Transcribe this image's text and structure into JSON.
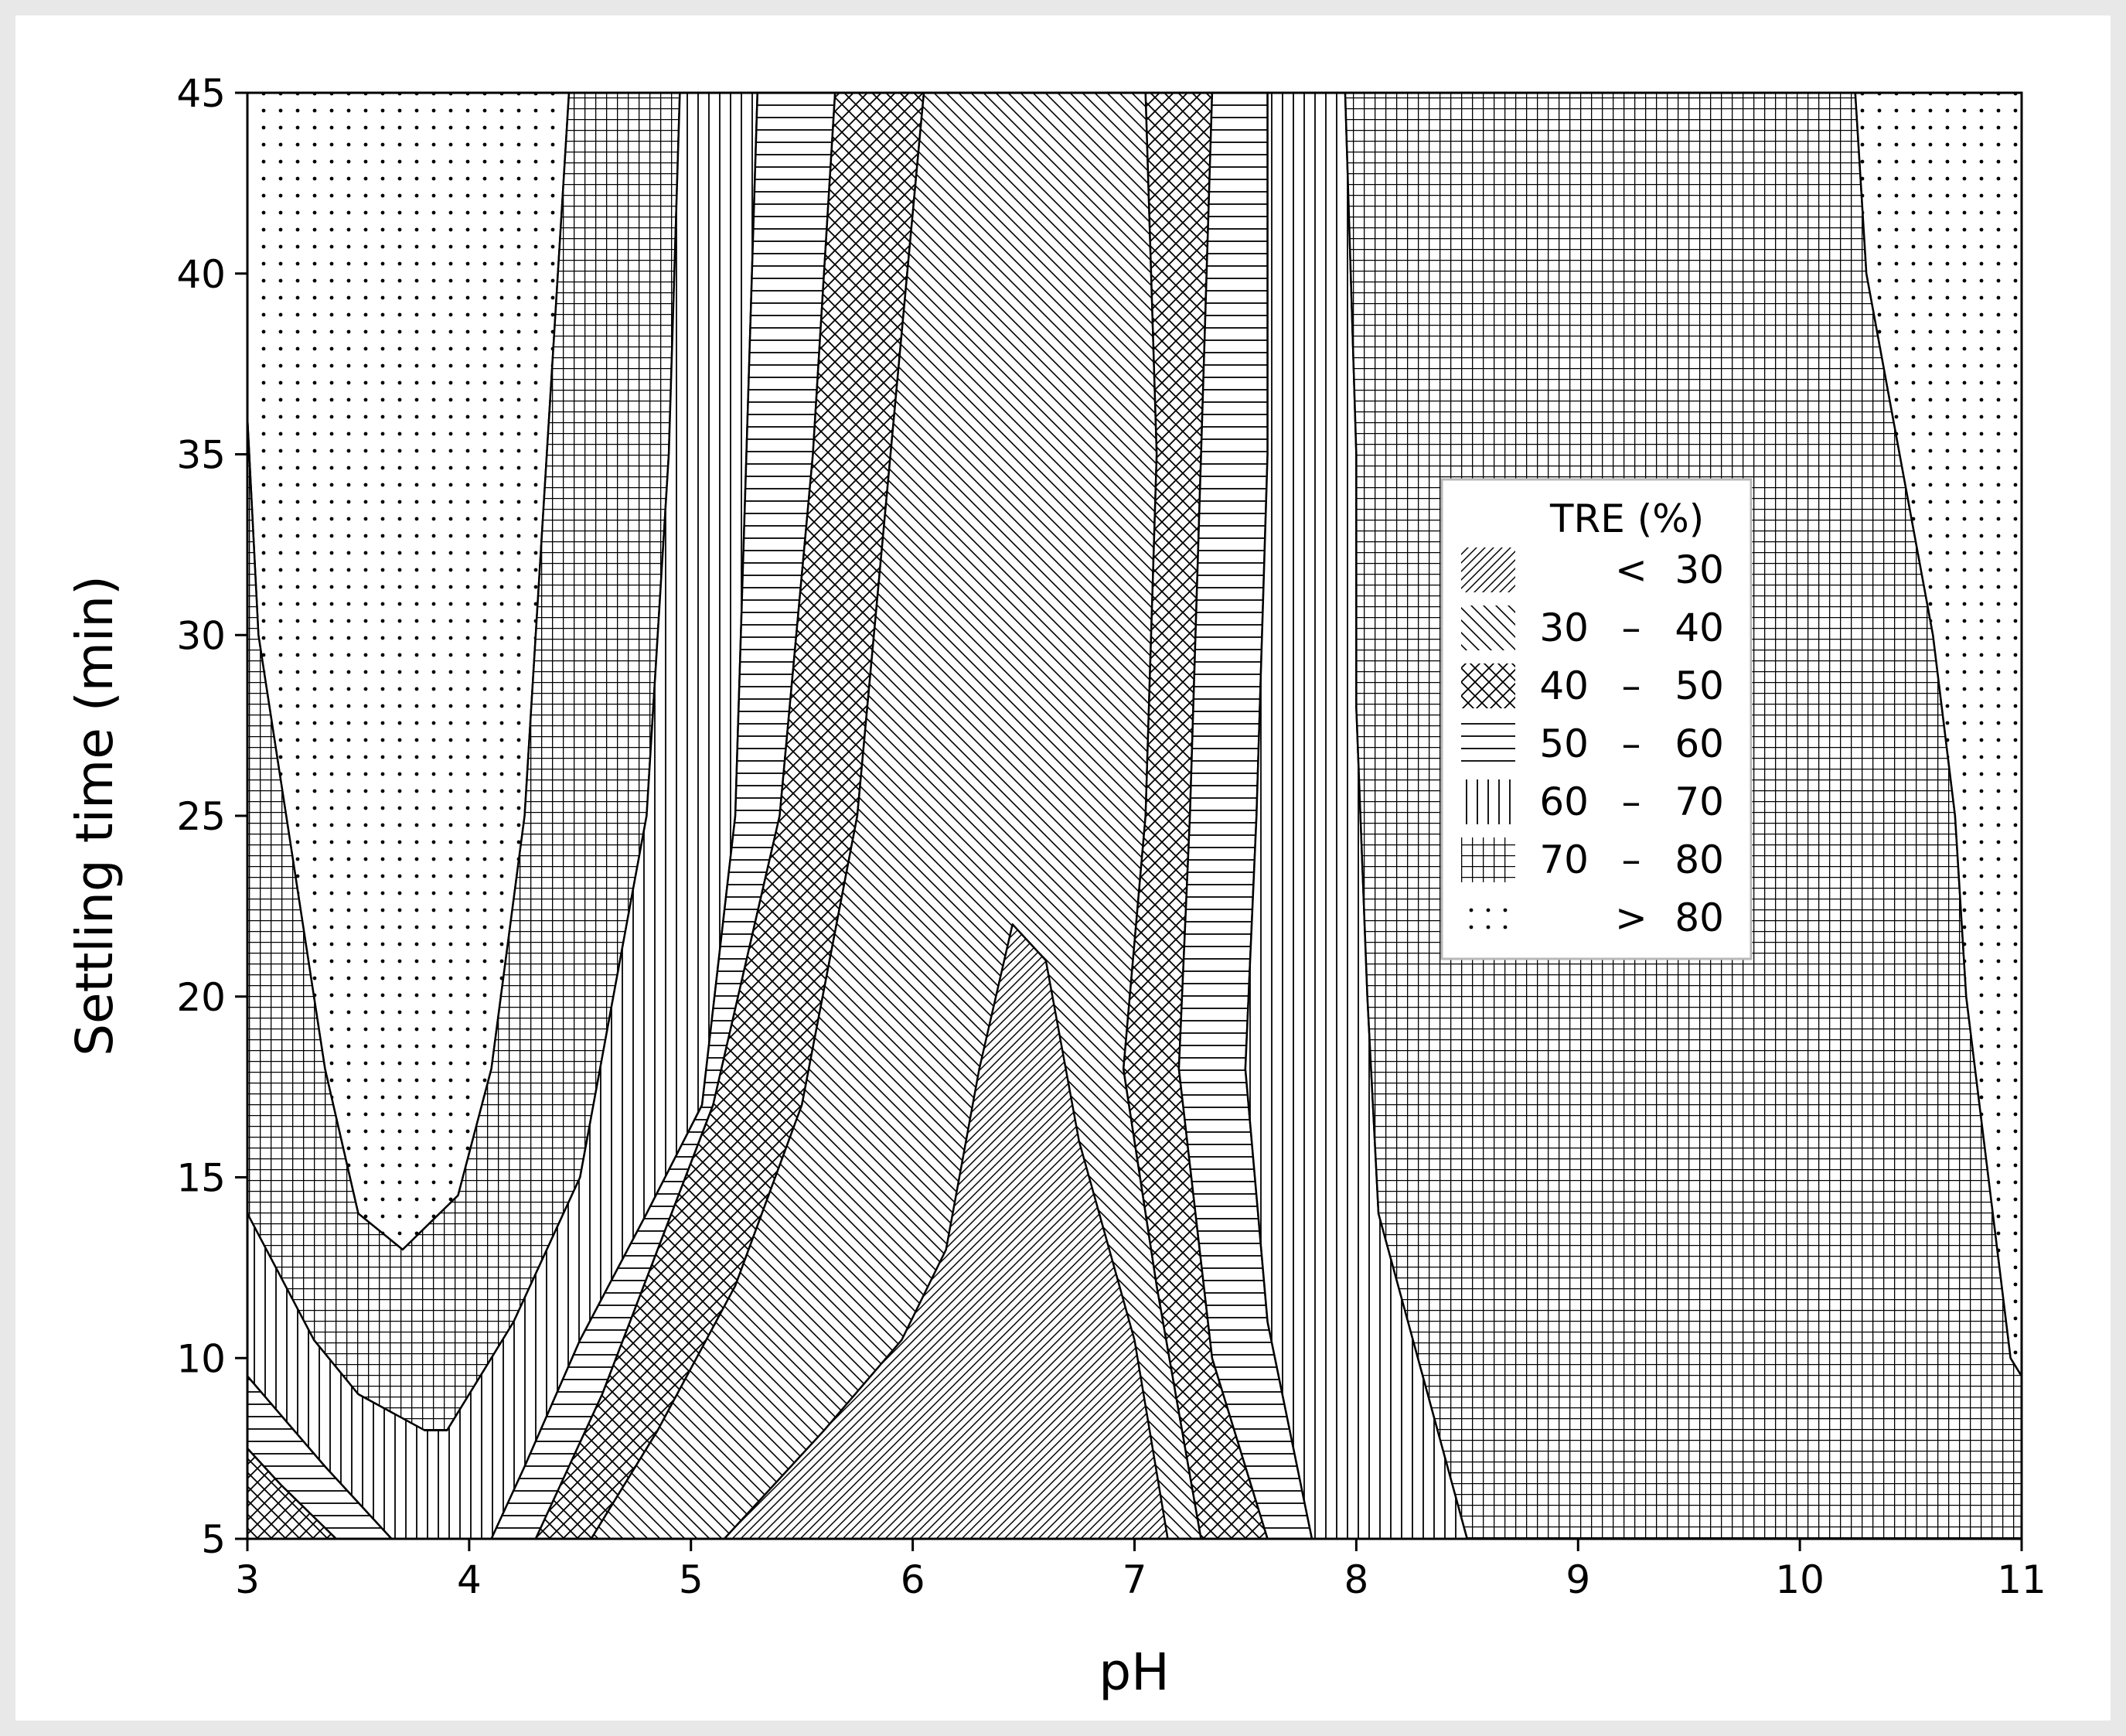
{
  "chart_data": {
    "type": "contour",
    "xlabel": "pH",
    "ylabel": "Settling time (min)",
    "xlim": [
      3,
      11
    ],
    "ylim": [
      5,
      45
    ],
    "x_ticks": [
      "3",
      "4",
      "5",
      "6",
      "7",
      "8",
      "9",
      "10",
      "11"
    ],
    "y_ticks": [
      "5",
      "10",
      "15",
      "20",
      "25",
      "30",
      "35",
      "40",
      "45"
    ],
    "legend": {
      "title": "TRE (%)",
      "placement": "right",
      "entries": [
        {
          "op": "<",
          "low": "",
          "high": "30",
          "pattern": "diag-right-dense"
        },
        {
          "op": "–",
          "low": "30",
          "high": "40",
          "pattern": "diag-left"
        },
        {
          "op": "–",
          "low": "40",
          "high": "50",
          "pattern": "crosshatch-diag"
        },
        {
          "op": "–",
          "low": "50",
          "high": "60",
          "pattern": "horizontal"
        },
        {
          "op": "–",
          "low": "60",
          "high": "70",
          "pattern": "vertical"
        },
        {
          "op": "–",
          "low": "70",
          "high": "80",
          "pattern": "grid"
        },
        {
          "op": ">",
          "low": "",
          "high": "80",
          "pattern": "dots"
        }
      ]
    },
    "regions": [
      {
        "band": ">80",
        "pattern": "dots",
        "points": [
          [
            3,
            45
          ],
          [
            4.45,
            45
          ],
          [
            4.35,
            35
          ],
          [
            4.25,
            25
          ],
          [
            4.1,
            18
          ],
          [
            3.95,
            14.5
          ],
          [
            3.7,
            13
          ],
          [
            3.5,
            14
          ],
          [
            3.35,
            18
          ],
          [
            3.2,
            24
          ],
          [
            3.05,
            30
          ],
          [
            3,
            36
          ]
        ]
      },
      {
        "band": "70-80",
        "pattern": "grid",
        "points": [
          [
            4.45,
            45
          ],
          [
            4.95,
            45
          ],
          [
            4.9,
            35
          ],
          [
            4.8,
            25
          ],
          [
            4.5,
            15
          ],
          [
            4.2,
            11
          ],
          [
            4.0,
            9
          ],
          [
            3.9,
            8
          ],
          [
            3.8,
            8
          ],
          [
            3.5,
            9
          ],
          [
            3.3,
            10.5
          ],
          [
            3.0,
            14
          ],
          [
            3,
            36
          ],
          [
            3.05,
            30
          ],
          [
            3.2,
            24
          ],
          [
            3.35,
            18
          ],
          [
            3.5,
            14
          ],
          [
            3.7,
            13
          ],
          [
            3.95,
            14.5
          ],
          [
            4.1,
            18
          ],
          [
            4.25,
            25
          ],
          [
            4.35,
            35
          ]
        ]
      },
      {
        "band": "60-70",
        "pattern": "vertical",
        "points": [
          [
            4.95,
            45
          ],
          [
            5.3,
            45
          ],
          [
            5.25,
            35
          ],
          [
            5.2,
            25
          ],
          [
            5.05,
            17
          ],
          [
            4.8,
            14
          ],
          [
            4.5,
            10.5
          ],
          [
            4.25,
            7
          ],
          [
            4.1,
            5
          ],
          [
            3.65,
            5
          ],
          [
            3.35,
            7
          ],
          [
            3.0,
            9.5
          ],
          [
            3.0,
            14
          ],
          [
            3.3,
            10.5
          ],
          [
            3.5,
            9
          ],
          [
            3.8,
            8
          ],
          [
            3.9,
            8
          ],
          [
            4.0,
            9
          ],
          [
            4.2,
            11
          ],
          [
            4.5,
            15
          ],
          [
            4.8,
            25
          ],
          [
            4.9,
            35
          ]
        ]
      },
      {
        "band": "50-60",
        "pattern": "horizontal",
        "points": [
          [
            5.3,
            45
          ],
          [
            5.65,
            45
          ],
          [
            5.55,
            35
          ],
          [
            5.4,
            25
          ],
          [
            5.1,
            17
          ],
          [
            4.85,
            13
          ],
          [
            4.6,
            9
          ],
          [
            4.3,
            5
          ],
          [
            4.1,
            5
          ],
          [
            4.25,
            7
          ],
          [
            4.5,
            10.5
          ],
          [
            4.8,
            14
          ],
          [
            5.05,
            17
          ],
          [
            5.2,
            25
          ],
          [
            5.25,
            35
          ]
        ]
      },
      {
        "band": "50-60",
        "pattern": "horizontal",
        "points": [
          [
            3.0,
            9.5
          ],
          [
            3.35,
            7
          ],
          [
            3.65,
            5
          ],
          [
            3.4,
            5
          ],
          [
            3.15,
            6.5
          ],
          [
            3.0,
            7.5
          ]
        ]
      },
      {
        "band": "40-50",
        "pattern": "crosshatch-diag",
        "points": [
          [
            3.0,
            7.5
          ],
          [
            3.15,
            6.5
          ],
          [
            3.4,
            5
          ],
          [
            3.0,
            5
          ]
        ]
      },
      {
        "band": "40-50",
        "pattern": "crosshatch-diag",
        "points": [
          [
            5.65,
            45
          ],
          [
            6.05,
            45
          ],
          [
            5.9,
            35
          ],
          [
            5.75,
            25
          ],
          [
            5.5,
            17
          ],
          [
            5.2,
            12
          ],
          [
            4.85,
            8
          ],
          [
            4.55,
            5
          ],
          [
            4.3,
            5
          ],
          [
            4.6,
            9
          ],
          [
            4.85,
            13
          ],
          [
            5.1,
            17
          ],
          [
            5.4,
            25
          ],
          [
            5.55,
            35
          ]
        ]
      },
      {
        "band": "30-40",
        "pattern": "diag-left",
        "points": [
          [
            6.05,
            45
          ],
          [
            7.05,
            45
          ],
          [
            7.1,
            35
          ],
          [
            7.05,
            25
          ],
          [
            6.95,
            18
          ],
          [
            7.1,
            12
          ],
          [
            7.3,
            5
          ],
          [
            4.55,
            5
          ],
          [
            4.85,
            8
          ],
          [
            5.2,
            12
          ],
          [
            5.5,
            17
          ],
          [
            5.75,
            25
          ],
          [
            5.9,
            35
          ]
        ]
      },
      {
        "band": "<30",
        "pattern": "diag-right-dense",
        "points": [
          [
            6.45,
            22
          ],
          [
            6.6,
            21
          ],
          [
            6.75,
            16
          ],
          [
            7.0,
            10.5
          ],
          [
            7.15,
            5
          ],
          [
            5.15,
            5
          ],
          [
            5.6,
            8
          ],
          [
            5.95,
            10.5
          ],
          [
            6.15,
            13
          ],
          [
            6.3,
            18
          ]
        ]
      },
      {
        "band": "40-50",
        "pattern": "crosshatch-diag",
        "points": [
          [
            7.05,
            45
          ],
          [
            7.35,
            45
          ],
          [
            7.3,
            35
          ],
          [
            7.25,
            25
          ],
          [
            7.2,
            18
          ],
          [
            7.35,
            10
          ],
          [
            7.6,
            5
          ],
          [
            7.3,
            5
          ],
          [
            7.1,
            12
          ],
          [
            6.95,
            18
          ],
          [
            7.05,
            25
          ],
          [
            7.1,
            35
          ]
        ]
      },
      {
        "band": "50-60",
        "pattern": "horizontal",
        "points": [
          [
            7.35,
            45
          ],
          [
            7.6,
            45
          ],
          [
            7.6,
            35
          ],
          [
            7.55,
            25
          ],
          [
            7.5,
            18
          ],
          [
            7.6,
            11
          ],
          [
            7.8,
            5
          ],
          [
            7.6,
            5
          ],
          [
            7.35,
            10
          ],
          [
            7.2,
            18
          ],
          [
            7.25,
            25
          ],
          [
            7.3,
            35
          ]
        ]
      },
      {
        "band": "60-70",
        "pattern": "vertical",
        "points": [
          [
            7.6,
            45
          ],
          [
            7.95,
            45
          ],
          [
            8.0,
            35
          ],
          [
            8.0,
            28
          ],
          [
            8.05,
            20
          ],
          [
            8.1,
            14
          ],
          [
            8.5,
            5
          ],
          [
            7.8,
            5
          ],
          [
            7.6,
            11
          ],
          [
            7.5,
            18
          ],
          [
            7.55,
            25
          ],
          [
            7.6,
            35
          ]
        ]
      },
      {
        "band": "70-80",
        "pattern": "grid",
        "points": [
          [
            7.95,
            45
          ],
          [
            10.25,
            45
          ],
          [
            10.3,
            40
          ],
          [
            10.45,
            35
          ],
          [
            10.6,
            30
          ],
          [
            10.7,
            25
          ],
          [
            10.75,
            20
          ],
          [
            10.85,
            15
          ],
          [
            10.95,
            10
          ],
          [
            11.0,
            9.5
          ],
          [
            11.0,
            5
          ],
          [
            8.5,
            5
          ],
          [
            8.1,
            14
          ],
          [
            8.05,
            20
          ],
          [
            8.0,
            28
          ],
          [
            8.0,
            35
          ]
        ]
      },
      {
        "band": ">80",
        "pattern": "dots",
        "points": [
          [
            10.25,
            45
          ],
          [
            11.0,
            45
          ],
          [
            11.0,
            9.5
          ],
          [
            10.95,
            10
          ],
          [
            10.85,
            15
          ],
          [
            10.75,
            20
          ],
          [
            10.7,
            25
          ],
          [
            10.6,
            30
          ],
          [
            10.45,
            35
          ],
          [
            10.3,
            40
          ]
        ]
      }
    ]
  }
}
